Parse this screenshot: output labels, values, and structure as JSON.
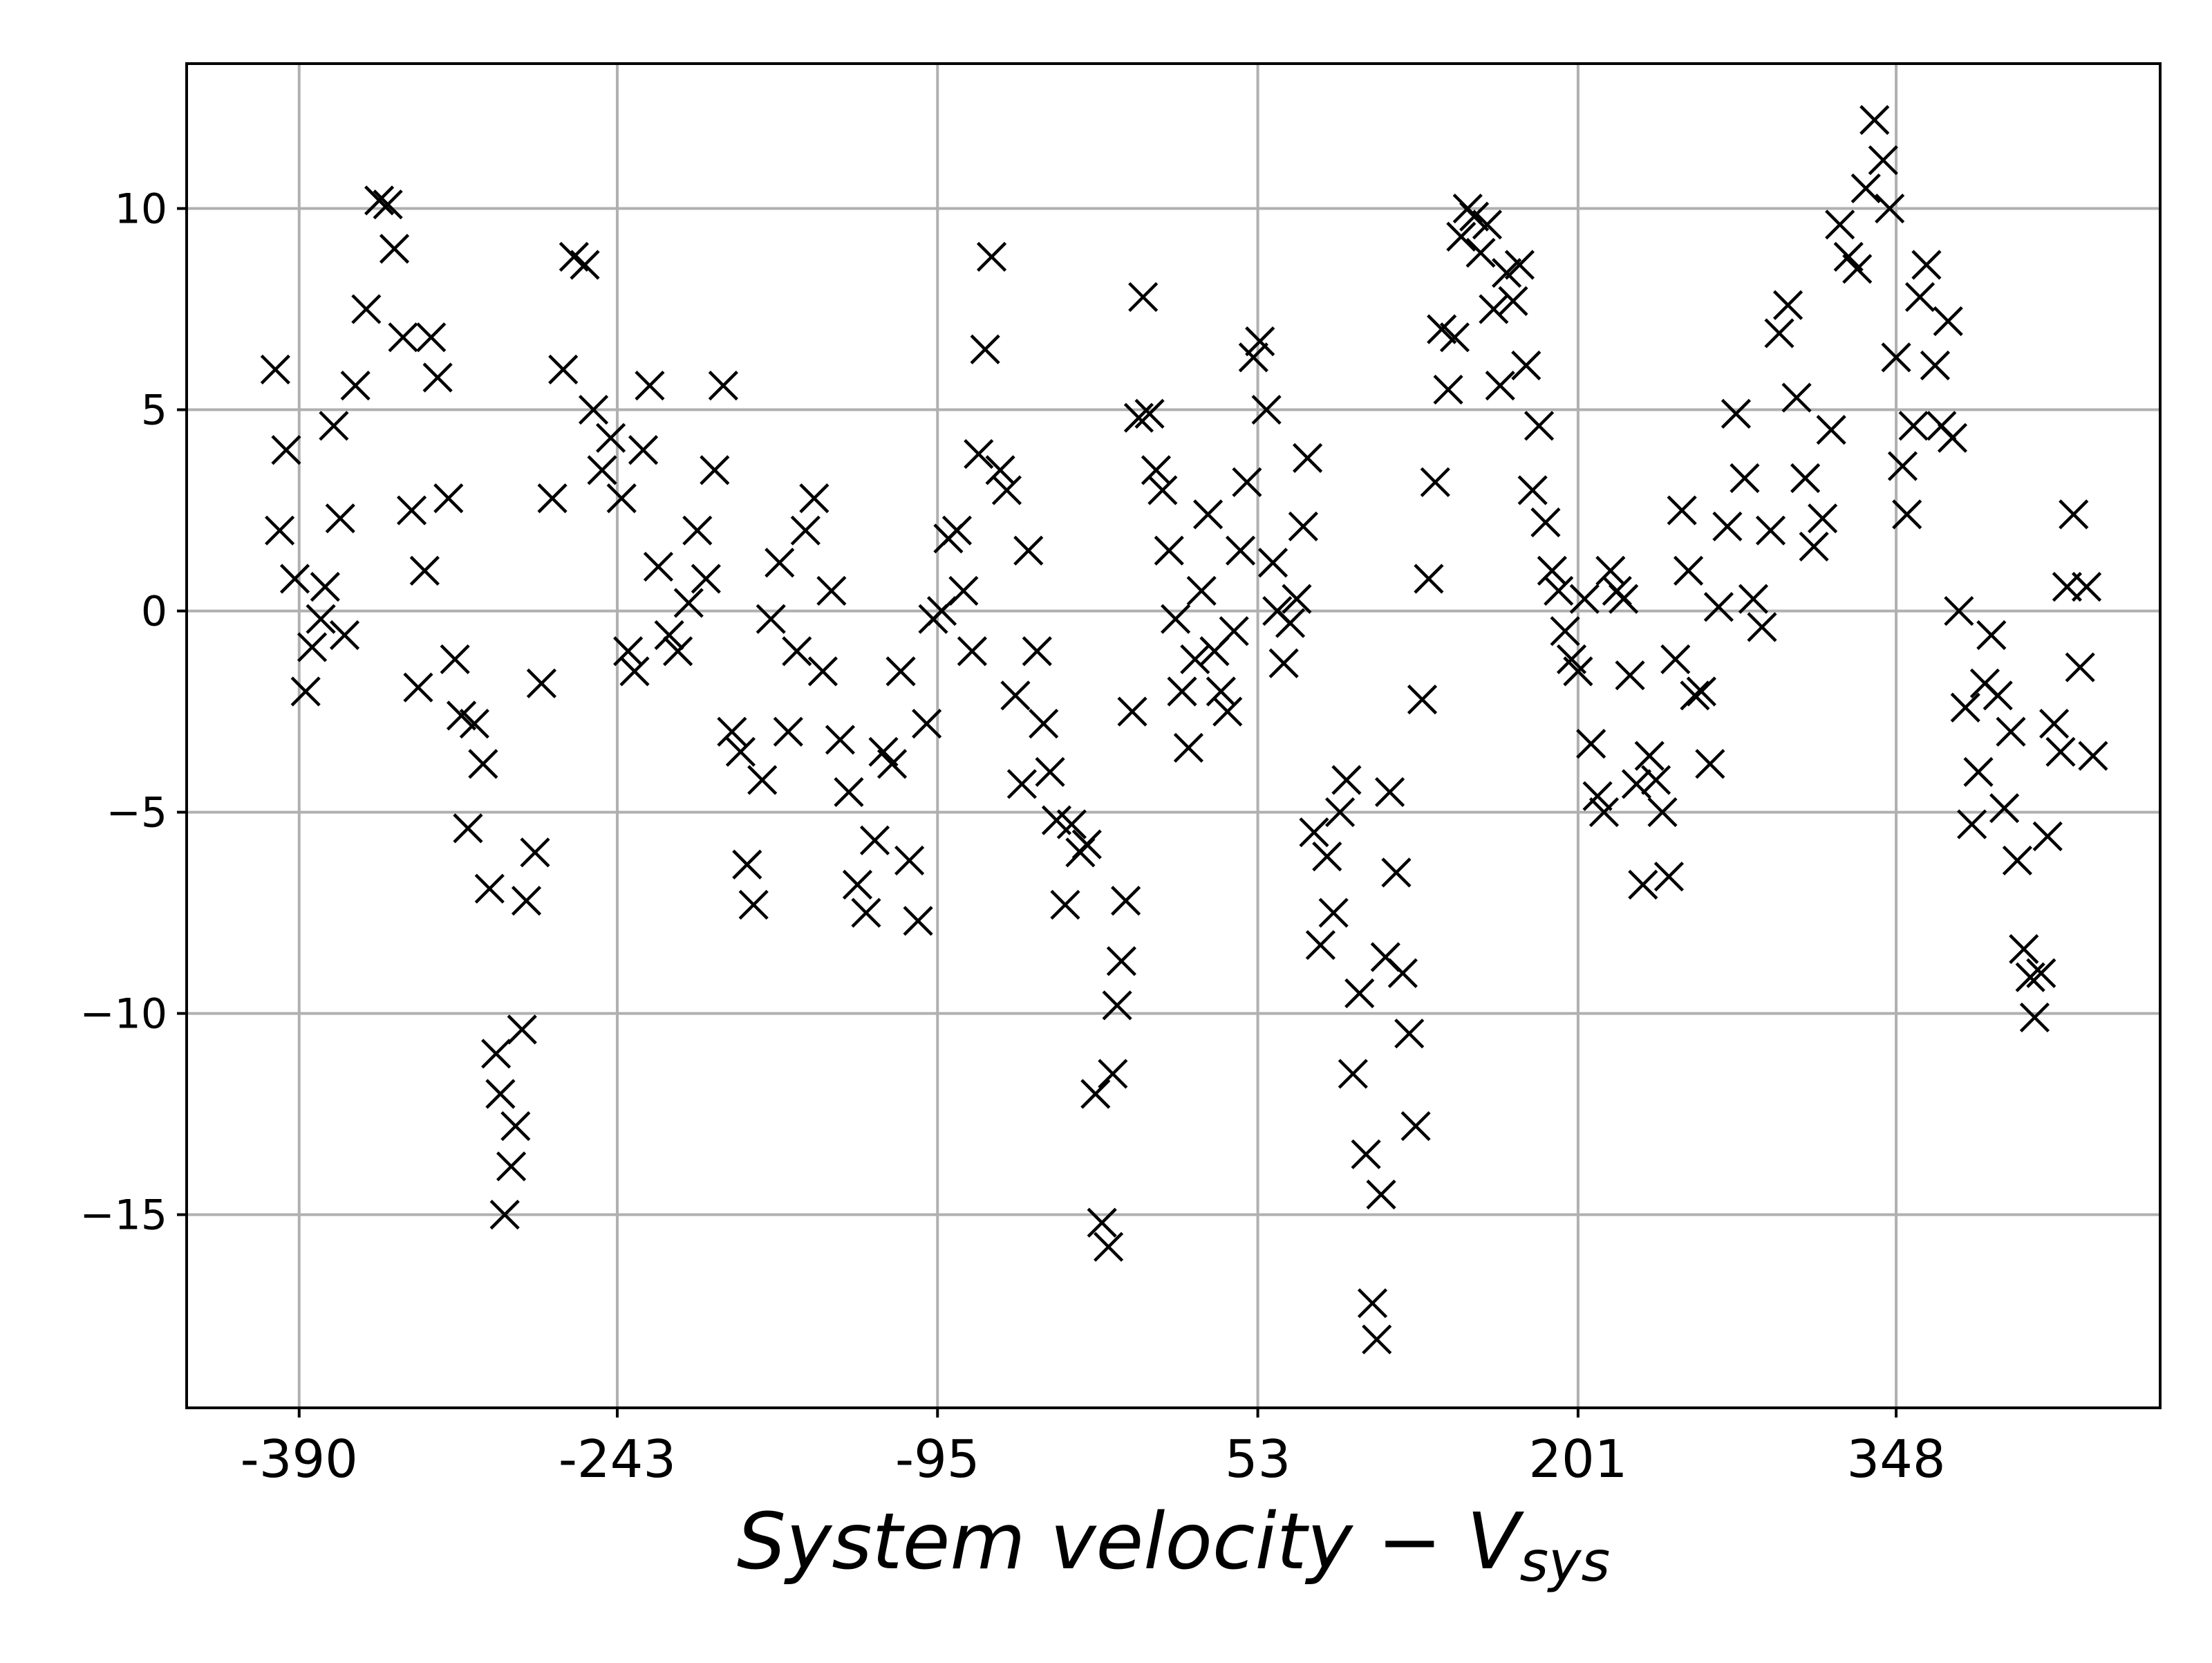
{
  "chart_data": {
    "type": "scatter",
    "title": "",
    "xlabel": "System velocity − V",
    "xlabel_sub": "sys",
    "ylabel": "",
    "marker": "x",
    "color": "#000000",
    "grid": true,
    "xlim": [
      -442,
      470
    ],
    "ylim": [
      -19.8,
      13.6
    ],
    "x_ticks": [
      -390,
      -243,
      -95,
      53,
      201,
      348
    ],
    "x_tick_labels": [
      "-390",
      "-243",
      "-95",
      "53",
      "201",
      "348"
    ],
    "y_ticks": [
      10,
      5,
      0,
      -5,
      -10,
      -15
    ],
    "y_tick_labels": [
      "10",
      "5",
      "0",
      "−5",
      "−10",
      "−15"
    ],
    "points": [
      [
        -401,
        6.0
      ],
      [
        -399,
        2.0
      ],
      [
        -396,
        4.0
      ],
      [
        -392,
        0.8
      ],
      [
        -387,
        -2.0
      ],
      [
        -384,
        -0.9
      ],
      [
        -380,
        -0.2
      ],
      [
        -378,
        0.6
      ],
      [
        -374,
        4.6
      ],
      [
        -371,
        2.3
      ],
      [
        -369,
        -0.6
      ],
      [
        -364,
        5.6
      ],
      [
        -359,
        7.5
      ],
      [
        -353,
        10.2
      ],
      [
        -349,
        10.1
      ],
      [
        -346,
        9.0
      ],
      [
        -342,
        6.8
      ],
      [
        -338,
        2.5
      ],
      [
        -335,
        -1.9
      ],
      [
        -332,
        1.0
      ],
      [
        -329,
        6.8
      ],
      [
        -326,
        5.8
      ],
      [
        -321,
        2.8
      ],
      [
        -318,
        -1.2
      ],
      [
        -315,
        -2.6
      ],
      [
        -312,
        -5.4
      ],
      [
        -309,
        -2.8
      ],
      [
        -305,
        -3.8
      ],
      [
        -302,
        -6.9
      ],
      [
        -299,
        -11.0
      ],
      [
        -297,
        -12.0
      ],
      [
        -295,
        -15.0
      ],
      [
        -292,
        -13.8
      ],
      [
        -290,
        -12.8
      ],
      [
        -287,
        -10.4
      ],
      [
        -285,
        -7.2
      ],
      [
        -281,
        -6.0
      ],
      [
        -278,
        -1.8
      ],
      [
        -273,
        2.8
      ],
      [
        -268,
        6.0
      ],
      [
        -263,
        8.8
      ],
      [
        -258,
        8.6
      ],
      [
        -254,
        5.0
      ],
      [
        -250,
        3.5
      ],
      [
        -246,
        4.3
      ],
      [
        -241,
        2.8
      ],
      [
        -238,
        -1.0
      ],
      [
        -235,
        -1.5
      ],
      [
        -231,
        4.0
      ],
      [
        -228,
        5.6
      ],
      [
        -224,
        1.1
      ],
      [
        -219,
        -0.6
      ],
      [
        -215,
        -1.0
      ],
      [
        -210,
        0.2
      ],
      [
        -206,
        2.0
      ],
      [
        -202,
        0.8
      ],
      [
        -198,
        3.5
      ],
      [
        -194,
        5.6
      ],
      [
        -190,
        -3.0
      ],
      [
        -186,
        -3.5
      ],
      [
        -183,
        -6.3
      ],
      [
        -180,
        -7.3
      ],
      [
        -176,
        -4.2
      ],
      [
        -172,
        -0.2
      ],
      [
        -168,
        1.2
      ],
      [
        -164,
        -3.0
      ],
      [
        -160,
        -1.0
      ],
      [
        -156,
        2.0
      ],
      [
        -152,
        2.8
      ],
      [
        -148,
        -1.5
      ],
      [
        -144,
        0.5
      ],
      [
        -140,
        -3.2
      ],
      [
        -136,
        -4.5
      ],
      [
        -132,
        -6.8
      ],
      [
        -128,
        -7.5
      ],
      [
        -124,
        -5.7
      ],
      [
        -120,
        -3.5
      ],
      [
        -116,
        -3.8
      ],
      [
        -112,
        -1.5
      ],
      [
        -108,
        -6.2
      ],
      [
        -104,
        -7.7
      ],
      [
        -100,
        -2.8
      ],
      [
        -97,
        -0.2
      ],
      [
        -93,
        0.0
      ],
      [
        -90,
        1.8
      ],
      [
        -86,
        2.0
      ],
      [
        -83,
        0.5
      ],
      [
        -79,
        -1.0
      ],
      [
        -76,
        3.9
      ],
      [
        -73,
        6.5
      ],
      [
        -70,
        8.8
      ],
      [
        -66,
        3.5
      ],
      [
        -63,
        3.0
      ],
      [
        -59,
        -2.1
      ],
      [
        -56,
        -4.3
      ],
      [
        -53,
        1.5
      ],
      [
        -49,
        -1.0
      ],
      [
        -46,
        -2.8
      ],
      [
        -43,
        -4.0
      ],
      [
        -40,
        -5.2
      ],
      [
        -36,
        -7.3
      ],
      [
        -33,
        -5.3
      ],
      [
        -29,
        -6.0
      ],
      [
        -26,
        -5.8
      ],
      [
        -22,
        -12.0
      ],
      [
        -19,
        -15.2
      ],
      [
        -16,
        -15.8
      ],
      [
        -14,
        -11.5
      ],
      [
        -12,
        -9.8
      ],
      [
        -10,
        -8.7
      ],
      [
        -8,
        -7.2
      ],
      [
        -5,
        -2.5
      ],
      [
        -2,
        4.8
      ],
      [
        0,
        7.8
      ],
      [
        3,
        4.9
      ],
      [
        6,
        3.5
      ],
      [
        9,
        3.0
      ],
      [
        12,
        1.5
      ],
      [
        15,
        -0.2
      ],
      [
        18,
        -2.0
      ],
      [
        21,
        -3.4
      ],
      [
        24,
        -1.2
      ],
      [
        27,
        0.5
      ],
      [
        30,
        2.4
      ],
      [
        33,
        -1.0
      ],
      [
        36,
        -2.0
      ],
      [
        39,
        -2.5
      ],
      [
        42,
        -0.5
      ],
      [
        45,
        1.5
      ],
      [
        48,
        3.2
      ],
      [
        51,
        6.3
      ],
      [
        54,
        6.7
      ],
      [
        57,
        5.0
      ],
      [
        60,
        1.2
      ],
      [
        62,
        0.0
      ],
      [
        65,
        -1.3
      ],
      [
        68,
        -0.3
      ],
      [
        71,
        0.3
      ],
      [
        74,
        2.1
      ],
      [
        76,
        3.8
      ],
      [
        79,
        -5.5
      ],
      [
        82,
        -8.3
      ],
      [
        85,
        -6.1
      ],
      [
        88,
        -7.5
      ],
      [
        91,
        -5.0
      ],
      [
        94,
        -4.2
      ],
      [
        97,
        -11.5
      ],
      [
        100,
        -9.5
      ],
      [
        103,
        -13.5
      ],
      [
        106,
        -17.2
      ],
      [
        108,
        -18.1
      ],
      [
        110,
        -14.5
      ],
      [
        112,
        -8.6
      ],
      [
        114,
        -4.5
      ],
      [
        117,
        -6.5
      ],
      [
        120,
        -9.0
      ],
      [
        123,
        -10.5
      ],
      [
        126,
        -12.8
      ],
      [
        129,
        -2.2
      ],
      [
        132,
        0.8
      ],
      [
        135,
        3.2
      ],
      [
        138,
        7.0
      ],
      [
        141,
        5.5
      ],
      [
        144,
        6.8
      ],
      [
        147,
        9.3
      ],
      [
        150,
        10.0
      ],
      [
        153,
        9.8
      ],
      [
        156,
        8.9
      ],
      [
        159,
        9.6
      ],
      [
        162,
        7.5
      ],
      [
        165,
        5.6
      ],
      [
        168,
        8.4
      ],
      [
        171,
        7.7
      ],
      [
        174,
        8.6
      ],
      [
        177,
        6.1
      ],
      [
        180,
        3.0
      ],
      [
        183,
        4.6
      ],
      [
        186,
        2.2
      ],
      [
        189,
        1.0
      ],
      [
        192,
        0.5
      ],
      [
        195,
        -0.5
      ],
      [
        198,
        -1.2
      ],
      [
        201,
        -1.5
      ],
      [
        204,
        0.3
      ],
      [
        207,
        -3.3
      ],
      [
        210,
        -4.6
      ],
      [
        213,
        -5.0
      ],
      [
        216,
        1.0
      ],
      [
        219,
        0.5
      ],
      [
        222,
        0.3
      ],
      [
        225,
        -1.6
      ],
      [
        228,
        -4.3
      ],
      [
        231,
        -6.8
      ],
      [
        234,
        -3.6
      ],
      [
        237,
        -4.2
      ],
      [
        240,
        -5.0
      ],
      [
        243,
        -6.6
      ],
      [
        246,
        -1.2
      ],
      [
        249,
        2.5
      ],
      [
        252,
        1.0
      ],
      [
        255,
        -2.1
      ],
      [
        258,
        -2.0
      ],
      [
        262,
        -3.8
      ],
      [
        266,
        0.1
      ],
      [
        270,
        2.1
      ],
      [
        274,
        4.9
      ],
      [
        278,
        3.3
      ],
      [
        282,
        0.3
      ],
      [
        286,
        -0.4
      ],
      [
        290,
        2.0
      ],
      [
        294,
        6.9
      ],
      [
        298,
        7.6
      ],
      [
        302,
        5.3
      ],
      [
        306,
        3.3
      ],
      [
        310,
        1.6
      ],
      [
        314,
        2.3
      ],
      [
        318,
        4.5
      ],
      [
        322,
        9.6
      ],
      [
        326,
        8.8
      ],
      [
        330,
        8.5
      ],
      [
        334,
        10.5
      ],
      [
        338,
        12.2
      ],
      [
        342,
        11.2
      ],
      [
        345,
        10.0
      ],
      [
        348,
        6.3
      ],
      [
        351,
        3.6
      ],
      [
        353,
        2.4
      ],
      [
        356,
        4.6
      ],
      [
        359,
        7.8
      ],
      [
        362,
        8.6
      ],
      [
        366,
        6.1
      ],
      [
        369,
        4.6
      ],
      [
        372,
        7.2
      ],
      [
        374,
        4.3
      ],
      [
        377,
        0.0
      ],
      [
        380,
        -2.4
      ],
      [
        383,
        -5.3
      ],
      [
        386,
        -4.0
      ],
      [
        389,
        -1.8
      ],
      [
        392,
        -0.6
      ],
      [
        395,
        -2.1
      ],
      [
        398,
        -4.9
      ],
      [
        401,
        -3.0
      ],
      [
        404,
        -6.2
      ],
      [
        407,
        -8.4
      ],
      [
        410,
        -9.1
      ],
      [
        412,
        -10.1
      ],
      [
        415,
        -9.0
      ],
      [
        418,
        -5.6
      ],
      [
        421,
        -2.8
      ],
      [
        424,
        -3.5
      ],
      [
        427,
        0.6
      ],
      [
        430,
        2.4
      ],
      [
        433,
        -1.4
      ],
      [
        436,
        0.6
      ],
      [
        439,
        -3.6
      ]
    ]
  }
}
